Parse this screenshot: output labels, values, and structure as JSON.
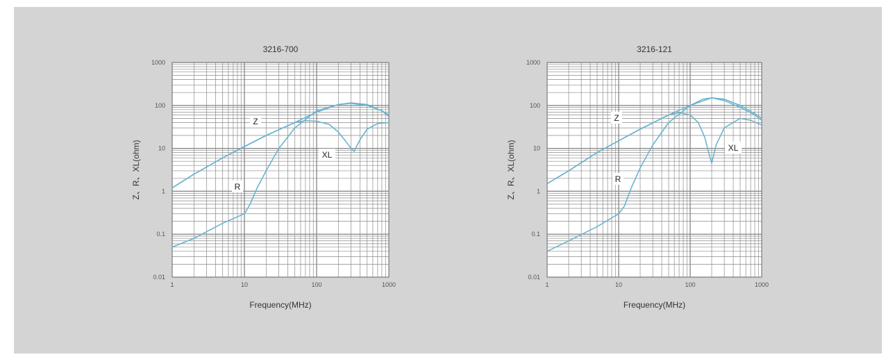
{
  "chart_data": [
    {
      "type": "line",
      "title": "3216-700",
      "xlabel": "Frequency(MHz)",
      "ylabel": "Z、R、XL(ohm)",
      "xscale": "log",
      "yscale": "log",
      "xlim": [
        1,
        1000
      ],
      "ylim": [
        0.01,
        1000
      ],
      "grid": true,
      "x_tick_labels": [
        "1",
        "10",
        "100",
        "1000"
      ],
      "y_tick_labels": [
        "0.01",
        "0.1",
        "1",
        "10",
        "100",
        "1000"
      ],
      "series": [
        {
          "name": "Z",
          "x": [
            1,
            2,
            5,
            10,
            20,
            50,
            100,
            200,
            300,
            500,
            800,
            1000
          ],
          "y": [
            1.2,
            2.5,
            6,
            11,
            20,
            40,
            70,
            105,
            115,
            105,
            75,
            55
          ]
        },
        {
          "name": "R",
          "x": [
            1,
            2,
            5,
            10,
            12,
            15,
            20,
            30,
            50,
            100,
            200,
            300,
            500,
            800,
            1000
          ],
          "y": [
            0.05,
            0.08,
            0.18,
            0.3,
            0.5,
            1.2,
            3,
            10,
            30,
            75,
            105,
            112,
            100,
            75,
            60
          ]
        },
        {
          "name": "XL",
          "x": [
            1,
            2,
            5,
            10,
            20,
            50,
            70,
            100,
            150,
            200,
            250,
            300,
            330,
            400,
            500,
            700,
            1000
          ],
          "y": [
            1.2,
            2.5,
            6,
            11,
            20,
            40,
            44,
            43,
            36,
            24,
            15,
            10,
            8.5,
            16,
            28,
            38,
            40
          ]
        }
      ],
      "annotations": [
        "Z",
        "R",
        "XL"
      ]
    },
    {
      "type": "line",
      "title": "3216-121",
      "xlabel": "Frequency(MHz)",
      "ylabel": "Z、R、XL(ohm)",
      "xscale": "log",
      "yscale": "log",
      "xlim": [
        1,
        1000
      ],
      "ylim": [
        0.01,
        1000
      ],
      "grid": true,
      "x_tick_labels": [
        "1",
        "10",
        "100",
        "1000"
      ],
      "y_tick_labels": [
        "0.01",
        "0.1",
        "1",
        "10",
        "100",
        "1000"
      ],
      "series": [
        {
          "name": "Z",
          "x": [
            1,
            2,
            5,
            10,
            20,
            50,
            100,
            200,
            300,
            500,
            800,
            1000
          ],
          "y": [
            1.5,
            3,
            8,
            15,
            28,
            60,
            100,
            150,
            140,
            100,
            65,
            50
          ]
        },
        {
          "name": "R",
          "x": [
            1,
            2,
            5,
            10,
            12,
            15,
            20,
            30,
            50,
            100,
            150,
            200,
            300,
            500,
            800,
            1000
          ],
          "y": [
            0.04,
            0.07,
            0.15,
            0.3,
            0.45,
            1.2,
            3.5,
            12,
            40,
            100,
            140,
            150,
            130,
            90,
            60,
            45
          ]
        },
        {
          "name": "XL",
          "x": [
            1,
            2,
            5,
            10,
            20,
            50,
            70,
            100,
            130,
            160,
            190,
            200,
            230,
            300,
            500,
            700,
            1000
          ],
          "y": [
            1.5,
            3,
            8,
            15,
            28,
            60,
            68,
            60,
            40,
            18,
            6,
            4.5,
            12,
            30,
            50,
            45,
            35
          ]
        }
      ],
      "annotations": [
        "Z",
        "R",
        "XL"
      ]
    }
  ],
  "style": {
    "background": "#d4d4d4",
    "plot_background": "#ffffff",
    "grid_color": "#8a8a8a",
    "curve_color": "#6ab4d0"
  }
}
